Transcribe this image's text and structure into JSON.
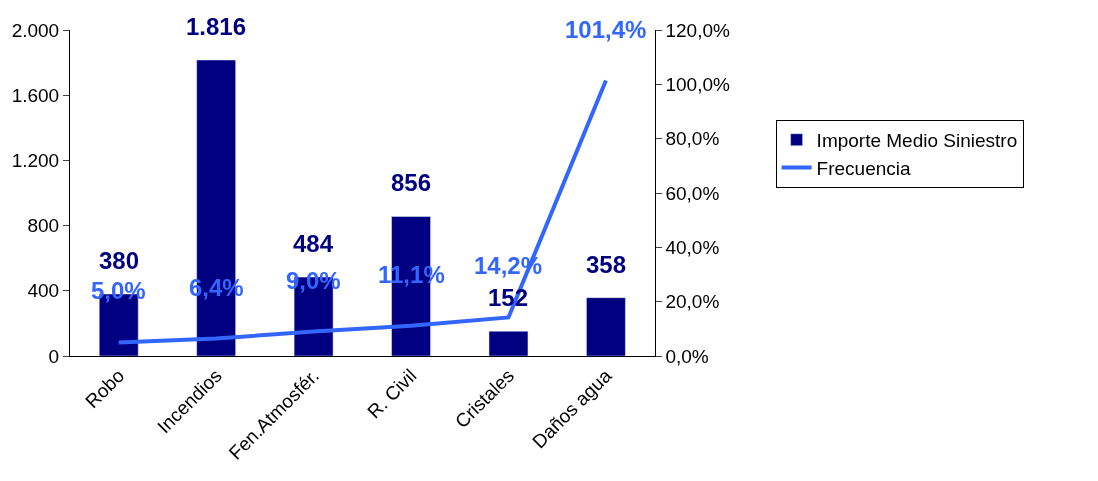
{
  "chart_data": {
    "type": "bar",
    "categories": [
      "Robo",
      "Incendios",
      "Fen.Atmosfér.",
      "R. Civil",
      "Cristales",
      "Daños agua"
    ],
    "series": [
      {
        "name": "Importe Medio Siniestro",
        "color": "#000080",
        "values": [
          380,
          1816,
          484,
          856,
          152,
          358
        ],
        "value_labels": [
          "380",
          "1.816",
          "484",
          "856",
          "152",
          "358"
        ]
      },
      {
        "name": "Frecuencia",
        "type": "line",
        "axis": "y2",
        "color": "#3366ff",
        "values": [
          5.0,
          6.4,
          9.0,
          11.1,
          14.2,
          101.4
        ],
        "value_labels": [
          "5,0%",
          "6,4%",
          "9,0%",
          "11,1%",
          "14,2%",
          "101,4%"
        ]
      }
    ],
    "ylim": [
      0,
      2000
    ],
    "yticks": [
      0,
      400,
      800,
      {
        "value": 1200,
        "label": "1.200"
      },
      {
        "value": 1600,
        "label": "1.600"
      },
      {
        "value": 2000,
        "label": "2.000"
      }
    ],
    "y2lim": [
      0,
      120
    ],
    "y2ticks": [
      {
        "value": 0,
        "label": "0,0%"
      },
      {
        "value": 20,
        "label": "20,0%"
      },
      {
        "value": 40,
        "label": "40,0%"
      },
      {
        "value": 60,
        "label": "60,0%"
      },
      {
        "value": 80,
        "label": "80,0%"
      },
      {
        "value": 100,
        "label": "100,0%"
      },
      {
        "value": 120,
        "label": "120,0%"
      }
    ],
    "legend": "right"
  }
}
